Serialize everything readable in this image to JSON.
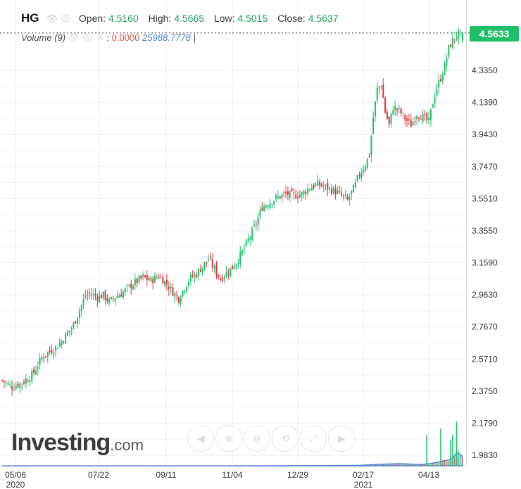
{
  "legend": {
    "symbol": "HG",
    "open_label": "Open:",
    "open": "4.5160",
    "high_label": "High:",
    "high": "4.5665",
    "low_label": "Low:",
    "low": "4.5015",
    "close_label": "Close:",
    "close": "4.5637"
  },
  "volume_legend": {
    "label": "Volume (9)",
    "value1": "0.0000",
    "value2": "25988.7778"
  },
  "last_price": "4.5633",
  "logo": {
    "text": "Investing",
    "suffix": ".com"
  },
  "colors": {
    "up": "#1fbf6a",
    "down": "#e0343c",
    "volume": "#3f7bd8",
    "grid": "#eeeeee",
    "tag": "#1fbf6a"
  },
  "toolbar_icons": [
    "scroll-left-icon",
    "zoom-in-icon",
    "zoom-out-icon",
    "zoom-reset-icon",
    "fit-icon",
    "scroll-right-icon"
  ],
  "chart_data": {
    "type": "candlestick",
    "y_ticks": [
      "4.3350",
      "4.1390",
      "3.9430",
      "3.7470",
      "3.5510",
      "3.3550",
      "3.1590",
      "2.9630",
      "2.7670",
      "2.5710",
      "2.3750",
      "2.1790",
      "1.9830"
    ],
    "x_ticks": [
      {
        "label": "05/06",
        "sub": "2020"
      },
      {
        "label": "07/22",
        "sub": ""
      },
      {
        "label": "09/11",
        "sub": ""
      },
      {
        "label": "11/04",
        "sub": ""
      },
      {
        "label": "12/29",
        "sub": ""
      },
      {
        "label": "02/17",
        "sub": "2021"
      },
      {
        "label": "04/13",
        "sub": ""
      }
    ],
    "ylim": [
      1.94,
      4.66
    ],
    "close_path": [
      [
        0,
        2.44
      ],
      [
        5,
        2.4
      ],
      [
        9,
        2.42
      ],
      [
        13,
        2.45
      ],
      [
        16,
        2.49
      ],
      [
        20,
        2.58
      ],
      [
        23,
        2.61
      ],
      [
        27,
        2.64
      ],
      [
        30,
        2.68
      ],
      [
        33,
        2.73
      ],
      [
        36,
        2.78
      ],
      [
        39,
        2.87
      ],
      [
        42,
        2.96
      ],
      [
        45,
        2.97
      ],
      [
        48,
        2.95
      ],
      [
        51,
        2.96
      ],
      [
        54,
        2.92
      ],
      [
        57,
        2.95
      ],
      [
        60,
        2.97
      ],
      [
        63,
        3.0
      ],
      [
        67,
        3.04
      ],
      [
        71,
        3.07
      ],
      [
        75,
        3.05
      ],
      [
        79,
        3.08
      ],
      [
        83,
        3.03
      ],
      [
        86,
        2.98
      ],
      [
        89,
        2.94
      ],
      [
        92,
        3.01
      ],
      [
        95,
        3.07
      ],
      [
        98,
        3.09
      ],
      [
        101,
        3.14
      ],
      [
        104,
        3.18
      ],
      [
        107,
        3.12
      ],
      [
        110,
        3.06
      ],
      [
        113,
        3.1
      ],
      [
        116,
        3.13
      ],
      [
        119,
        3.18
      ],
      [
        122,
        3.25
      ],
      [
        125,
        3.32
      ],
      [
        128,
        3.4
      ],
      [
        131,
        3.5
      ],
      [
        135,
        3.53
      ],
      [
        139,
        3.56
      ],
      [
        143,
        3.58
      ],
      [
        147,
        3.57
      ],
      [
        151,
        3.58
      ],
      [
        155,
        3.62
      ],
      [
        159,
        3.64
      ],
      [
        163,
        3.62
      ],
      [
        167,
        3.6
      ],
      [
        171,
        3.57
      ],
      [
        174,
        3.54
      ],
      [
        177,
        3.61
      ],
      [
        180,
        3.7
      ],
      [
        183,
        3.76
      ],
      [
        185,
        3.82
      ],
      [
        187,
        4.05
      ],
      [
        189,
        4.22
      ],
      [
        191,
        4.25
      ],
      [
        193,
        4.08
      ],
      [
        195,
        4.0
      ],
      [
        197,
        4.11
      ],
      [
        200,
        4.09
      ],
      [
        203,
        4.04
      ],
      [
        206,
        4.0
      ],
      [
        209,
        4.07
      ],
      [
        212,
        4.05
      ],
      [
        215,
        4.02
      ],
      [
        217,
        4.14
      ],
      [
        219,
        4.23
      ],
      [
        221,
        4.29
      ],
      [
        223,
        4.36
      ],
      [
        225,
        4.47
      ],
      [
        227,
        4.52
      ],
      [
        229,
        4.55
      ],
      [
        232,
        4.5637
      ]
    ],
    "volume_profile": [
      [
        0,
        0
      ],
      [
        110,
        0
      ],
      [
        135,
        120
      ],
      [
        160,
        400
      ],
      [
        180,
        900
      ],
      [
        190,
        2800
      ],
      [
        200,
        4200
      ],
      [
        205,
        3500
      ],
      [
        210,
        2600
      ],
      [
        215,
        4000
      ],
      [
        220,
        7500
      ],
      [
        224,
        10500
      ],
      [
        227,
        14000
      ],
      [
        229,
        25988
      ],
      [
        231,
        22000
      ],
      [
        232,
        16000
      ]
    ],
    "volume_spikes": [
      {
        "i": 214,
        "v": 60000
      },
      {
        "i": 221,
        "v": 72000
      },
      {
        "i": 226,
        "v": 50000
      },
      {
        "i": 227,
        "v": 60000
      },
      {
        "i": 229,
        "v": 85000
      }
    ],
    "volume_max": 95000
  }
}
